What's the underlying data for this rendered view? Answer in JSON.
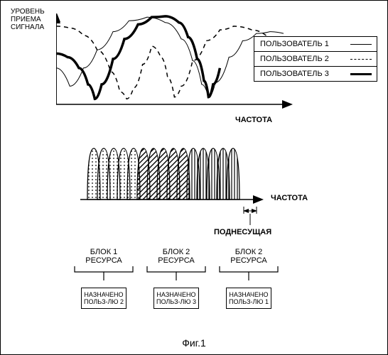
{
  "top_chart": {
    "type": "line",
    "yaxis_label": "УРОВЕНЬ\nПРИЕМА\nСИГНАЛА",
    "xaxis_label": "ЧАСТОТА",
    "xrange": [
      0,
      100
    ],
    "yrange": [
      0,
      100
    ],
    "axis_color": "#000000",
    "background_color": "#ffffff",
    "series": {
      "user1": {
        "style": "thin-solid",
        "stroke_width": 1,
        "color": "#000000",
        "points": [
          [
            0,
            40
          ],
          [
            6,
            20
          ],
          [
            12,
            40
          ],
          [
            18,
            60
          ],
          [
            25,
            80
          ],
          [
            32,
            92
          ],
          [
            40,
            96
          ],
          [
            48,
            90
          ],
          [
            55,
            72
          ],
          [
            60,
            48
          ],
          [
            64,
            22
          ],
          [
            67,
            8
          ],
          [
            70,
            24
          ],
          [
            76,
            52
          ],
          [
            82,
            70
          ],
          [
            88,
            78
          ],
          [
            94,
            80
          ],
          [
            100,
            78
          ]
        ]
      },
      "user2": {
        "style": "dashed",
        "stroke_width": 1.5,
        "color": "#000000",
        "points": [
          [
            0,
            86
          ],
          [
            6,
            84
          ],
          [
            12,
            76
          ],
          [
            18,
            60
          ],
          [
            24,
            36
          ],
          [
            28,
            14
          ],
          [
            31,
            6
          ],
          [
            34,
            18
          ],
          [
            38,
            44
          ],
          [
            42,
            64
          ],
          [
            46,
            52
          ],
          [
            49,
            30
          ],
          [
            52,
            8
          ],
          [
            55,
            20
          ],
          [
            60,
            48
          ],
          [
            66,
            70
          ],
          [
            72,
            82
          ],
          [
            78,
            86
          ],
          [
            86,
            82
          ],
          [
            94,
            72
          ],
          [
            100,
            62
          ]
        ]
      },
      "user3": {
        "style": "thick-solid",
        "stroke_width": 3.5,
        "color": "#000000",
        "points": [
          [
            0,
            56
          ],
          [
            5,
            52
          ],
          [
            10,
            40
          ],
          [
            14,
            22
          ],
          [
            17,
            6
          ],
          [
            20,
            22
          ],
          [
            25,
            50
          ],
          [
            30,
            72
          ],
          [
            36,
            88
          ],
          [
            42,
            96
          ],
          [
            48,
            97
          ],
          [
            54,
            90
          ],
          [
            58,
            74
          ],
          [
            62,
            50
          ],
          [
            65,
            26
          ],
          [
            67,
            8
          ],
          [
            69,
            22
          ],
          [
            72,
            40
          ]
        ]
      }
    },
    "legend": {
      "border_color": "#000000",
      "items": [
        {
          "label": "ПОЛЬЗОВАТЕЛЬ 1",
          "swatch": "thin"
        },
        {
          "label": "ПОЛЬЗОВАТЕЛЬ 2",
          "swatch": "dash"
        },
        {
          "label": "ПОЛЬЗОВАТЕЛЬ 3",
          "swatch": "thick"
        }
      ]
    }
  },
  "mid": {
    "type": "subcarrier-lobes",
    "xaxis_label": "ЧАСТОТА",
    "subcarrier_label": "ПОДНЕСУЩАЯ",
    "lobe_count": 15,
    "lobe_width": 18,
    "lobe_overlap": 4,
    "lobe_height": 72,
    "groups": [
      {
        "count": 5,
        "fill": "dots",
        "color": "#000000"
      },
      {
        "count": 5,
        "fill": "diag",
        "color": "#000000"
      },
      {
        "count": 5,
        "fill": "vert",
        "color": "#000000"
      }
    ],
    "axis_color": "#000000"
  },
  "resource_blocks": {
    "block_width": 90,
    "gap": 12,
    "items": [
      {
        "title": "БЛОК 1\nРЕСУРСА",
        "assigned": "НАЗНАЧЕНО\nПОЛЬЗ-ЛЮ 2"
      },
      {
        "title": "БЛОК 2\nРЕСУРСА",
        "assigned": "НАЗНАЧЕНО\nПОЛЬЗ-ЛЮ 3"
      },
      {
        "title": "БЛОК 2\nРЕСУРСА",
        "assigned": "НАЗНАЧЕНО\nПОЛЬЗ-ЛЮ 1"
      }
    ]
  },
  "figure_label": "Фиг.1",
  "colors": {
    "text": "#000000",
    "background": "#ffffff",
    "border": "#000000"
  },
  "fonts": {
    "family": "Arial",
    "label_size_pt": 9,
    "figure_label_size_pt": 12
  }
}
